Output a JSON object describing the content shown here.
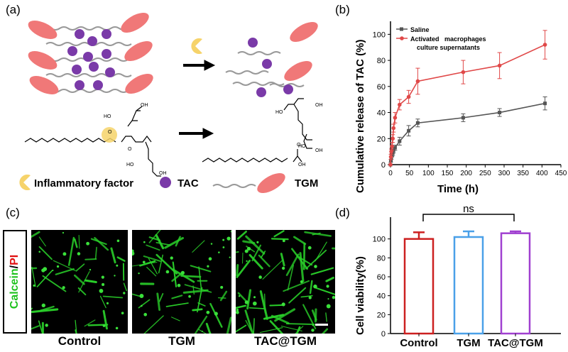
{
  "panel_labels": {
    "a": "(a)",
    "b": "(b)",
    "c": "(c)",
    "d": "(d)"
  },
  "legend_a": {
    "inflammatory": "Inflammatory factor",
    "tac": "TAC",
    "tgm": "TGM"
  },
  "chem": {
    "ho": "HO",
    "oh": "OH",
    "o": "O"
  },
  "colors": {
    "red_series": "#e04848",
    "gray_series": "#555555",
    "micelle": "#f07878",
    "tac": "#7a3aa8",
    "enzyme": "#f6d36a",
    "green": "#1fc21f",
    "pi_red": "#e01010",
    "control_bar": "#cc2020",
    "tgm_bar": "#4aa0e8",
    "tactgm_bar": "#a040d0"
  },
  "chart_data": [
    {
      "type": "line",
      "xlabel": "Time (h)",
      "ylabel": "Cumulative release of TAC (%)",
      "xlim": [
        0,
        450
      ],
      "ylim": [
        0,
        110
      ],
      "xticks": [
        "0",
        "50",
        "100",
        "150",
        "200",
        "250",
        "300",
        "350",
        "400",
        "450"
      ],
      "yticks": [
        "0",
        "20",
        "40",
        "60",
        "80",
        "100"
      ],
      "legend_position": "top-left",
      "series": [
        {
          "name": "Saline",
          "x": [
            0,
            1,
            2,
            4,
            6,
            8,
            12,
            24,
            48,
            72,
            192,
            288,
            408
          ],
          "y": [
            0,
            3,
            5,
            7,
            9,
            11,
            13,
            18,
            26,
            32,
            36,
            40,
            47
          ],
          "err": [
            0,
            1,
            1,
            1,
            2,
            2,
            2,
            3,
            4,
            3,
            3,
            3,
            5
          ]
        },
        {
          "name": "Activated   macrophages",
          "name_line2": "culture supernatants",
          "x": [
            0,
            1,
            2,
            4,
            6,
            8,
            12,
            24,
            48,
            72,
            192,
            288,
            408
          ],
          "y": [
            0,
            6,
            10,
            14,
            20,
            28,
            36,
            46,
            52,
            64,
            71,
            76,
            92
          ],
          "err": [
            0,
            2,
            2,
            3,
            3,
            3,
            4,
            4,
            5,
            10,
            9,
            10,
            11
          ]
        }
      ]
    },
    {
      "type": "bar",
      "ylabel": "Cell viability(%)",
      "categories": [
        "Control",
        "TGM",
        "TAC@TGM"
      ],
      "values": [
        100,
        102,
        106
      ],
      "errors": [
        7,
        6,
        2
      ],
      "ylim": [
        0,
        120
      ],
      "yticks": [
        "0",
        "20",
        "40",
        "60",
        "80",
        "100"
      ],
      "significance": "ns"
    }
  ],
  "panel_c": {
    "stain_label_green": "Calcein",
    "stain_label_sep": "/",
    "stain_label_red": "PI",
    "captions": [
      "Control",
      "TGM",
      "TAC@TGM"
    ]
  }
}
